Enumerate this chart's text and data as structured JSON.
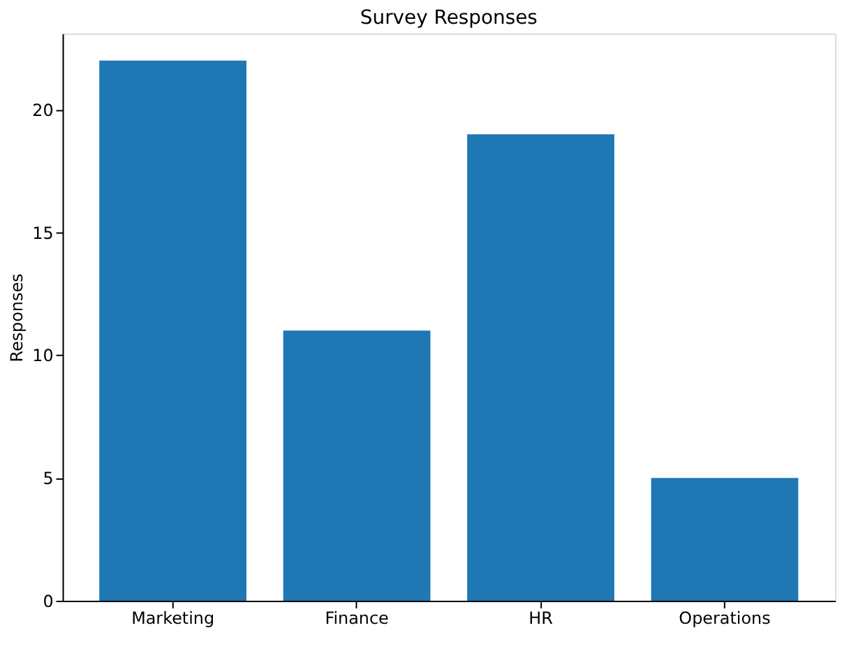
{
  "chart_data": {
    "type": "bar",
    "title": "Survey Responses",
    "ylabel": "Responses",
    "categories": [
      "Marketing",
      "Finance",
      "HR",
      "Operations"
    ],
    "values": [
      22,
      11,
      19,
      5
    ],
    "color": "#1f77b4",
    "ylim": [
      0,
      23.1
    ],
    "yticks": [
      0,
      5,
      10,
      15,
      20
    ],
    "grid": false
  }
}
